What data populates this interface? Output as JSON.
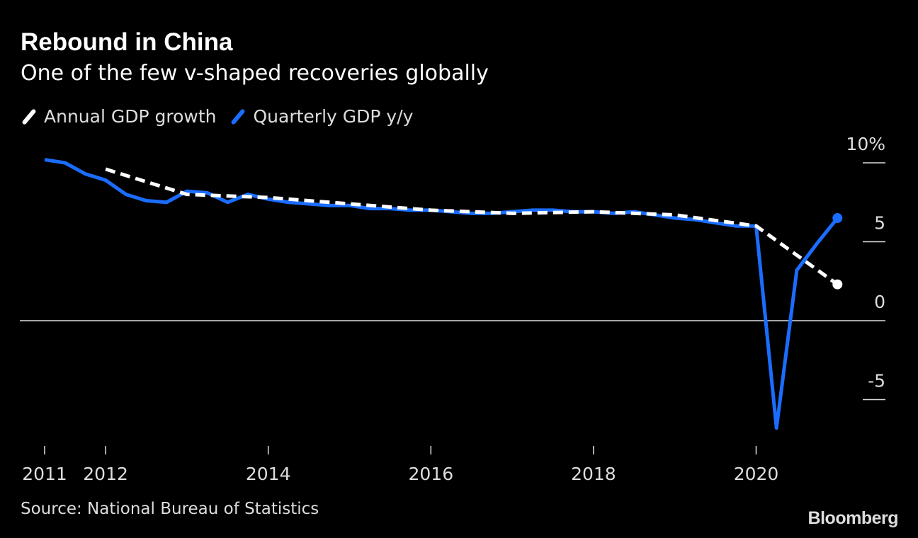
{
  "chart_data": {
    "type": "line",
    "title": "Rebound in China",
    "subtitle": "One of the few v-shaped recoveries globally",
    "source": "Source: National Bureau of Statistics",
    "logo": "Bloomberg",
    "ylim": [
      -9,
      10.5
    ],
    "y_ticks": [
      {
        "value": 10,
        "label": "10%"
      },
      {
        "value": 5,
        "label": "5"
      },
      {
        "value": 0,
        "label": "0"
      },
      {
        "value": -5,
        "label": "-5"
      }
    ],
    "x_ticks": [
      {
        "at": "2011 Q1",
        "label": "2011"
      },
      {
        "at": "2011 Q4",
        "label": "2012"
      },
      {
        "at": "2013 Q4",
        "label": "2014"
      },
      {
        "at": "2015 Q4",
        "label": "2016"
      },
      {
        "at": "2017 Q4",
        "label": "2018"
      },
      {
        "at": "2019 Q4",
        "label": "2020"
      }
    ],
    "grid": false,
    "legend_position": "top-left",
    "quarters": [
      "2011 Q1",
      "2011 Q2",
      "2011 Q3",
      "2011 Q4",
      "2012 Q1",
      "2012 Q2",
      "2012 Q3",
      "2012 Q4",
      "2013 Q1",
      "2013 Q2",
      "2013 Q3",
      "2013 Q4",
      "2014 Q1",
      "2014 Q2",
      "2014 Q3",
      "2014 Q4",
      "2015 Q1",
      "2015 Q2",
      "2015 Q3",
      "2015 Q4",
      "2016 Q1",
      "2016 Q2",
      "2016 Q3",
      "2016 Q4",
      "2017 Q1",
      "2017 Q2",
      "2017 Q3",
      "2017 Q4",
      "2018 Q1",
      "2018 Q2",
      "2018 Q3",
      "2018 Q4",
      "2019 Q1",
      "2019 Q2",
      "2019 Q3",
      "2019 Q4",
      "2020 Q1",
      "2020 Q2",
      "2020 Q3",
      "2020 Q4"
    ],
    "series": [
      {
        "name": "Annual GDP growth",
        "color": "#ffffff",
        "style": "dashed",
        "x": [
          "2011 Q4",
          "2012 Q4",
          "2013 Q4",
          "2014 Q4",
          "2015 Q4",
          "2016 Q4",
          "2017 Q4",
          "2018 Q4",
          "2019 Q4",
          "2020 Q4"
        ],
        "values": [
          9.6,
          8.0,
          7.8,
          7.4,
          7.0,
          6.8,
          6.9,
          6.7,
          6.0,
          2.3
        ]
      },
      {
        "name": "Quarterly GDP y/y",
        "color": "#1a6dff",
        "style": "solid",
        "values": [
          10.2,
          10.0,
          9.3,
          8.9,
          8.0,
          7.6,
          7.5,
          8.2,
          8.1,
          7.5,
          8.0,
          7.7,
          7.5,
          7.4,
          7.3,
          7.3,
          7.1,
          7.1,
          7.0,
          7.0,
          6.9,
          6.8,
          6.8,
          6.9,
          7.0,
          7.0,
          6.9,
          6.9,
          6.8,
          6.9,
          6.7,
          6.5,
          6.4,
          6.2,
          6.0,
          6.0,
          -6.8,
          3.2,
          4.9,
          6.5
        ]
      }
    ]
  }
}
